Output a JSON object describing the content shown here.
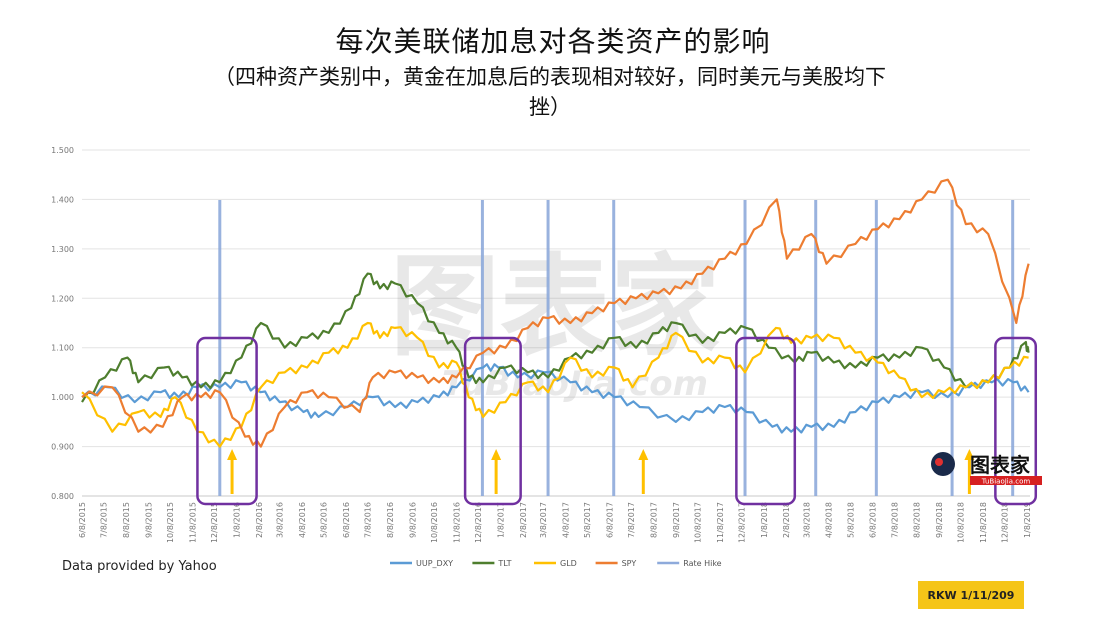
{
  "header": {
    "title": "每次美联储加息对各类资产的影响",
    "subtitle": "（四种资产类别中，黄金在加息后的表现相对较好，同时美元与美股均下挫）"
  },
  "footer": {
    "credit": "Data provided by Yahoo",
    "stamp": "RKW 1/11/209"
  },
  "watermark": {
    "brand_cn": "图表家",
    "brand_en": "TuBiaoJia.com"
  },
  "chart_data": {
    "type": "line",
    "title": "",
    "ylim": [
      0.8,
      1.5
    ],
    "yticks": [
      "0.800",
      "0.900",
      "1.000",
      "1.100",
      "1.200",
      "1.300",
      "1.400",
      "1.500"
    ],
    "grid": true,
    "xtick_labels": [
      "6/8/2015",
      "7/8/2015",
      "8/8/2015",
      "9/8/2015",
      "10/8/2015",
      "11/8/2015",
      "12/8/2015",
      "1/8/2016",
      "2/8/2016",
      "3/8/2016",
      "4/8/2016",
      "5/8/2016",
      "6/8/2016",
      "7/8/2016",
      "8/8/2016",
      "9/8/2016",
      "10/8/2016",
      "11/8/2016",
      "12/8/2016",
      "1/8/2017",
      "2/8/2017",
      "3/8/2017",
      "4/8/2017",
      "5/8/2017",
      "6/8/2017",
      "7/8/2017",
      "8/8/2017",
      "9/8/2017",
      "10/8/2017",
      "11/8/2017",
      "12/8/2017",
      "1/8/2018",
      "2/8/2018",
      "3/8/2018",
      "4/8/2018",
      "5/8/2018",
      "6/8/2018",
      "7/8/2018",
      "8/8/2018",
      "9/8/2018",
      "10/8/2018",
      "11/8/2018",
      "12/8/2018",
      "1/8/2019"
    ],
    "rate_hikes": [
      "2015-12-16",
      "2016-12-14",
      "2017-03-15",
      "2017-06-14",
      "2017-12-13",
      "2018-03-21",
      "2018-06-13",
      "2018-09-26",
      "2018-12-19"
    ],
    "highlight_windows": [
      [
        "2015-11-15",
        "2016-02-05"
      ],
      [
        "2016-11-20",
        "2017-02-05"
      ],
      [
        "2017-12-01",
        "2018-02-20"
      ],
      [
        "2018-11-25",
        "2019-01-20"
      ]
    ],
    "arrows": [
      "2016-01-02",
      "2017-01-02",
      "2017-07-25",
      "2018-10-20"
    ],
    "legend_position": "bottom",
    "colors": {
      "uup": "#5b9bd5",
      "tlt": "#4e7e2e",
      "gld": "#ffc000",
      "spy": "#ed7d31",
      "hike": "#8eaadb",
      "box": "#7030a0",
      "arrow": "#ffc000"
    },
    "series": [
      {
        "name": "UUP_DXY",
        "color": "#5b9bd5",
        "points": [
          [
            "2015-06-08",
            1.0
          ],
          [
            "2015-07-15",
            1.02
          ],
          [
            "2015-08-20",
            0.99
          ],
          [
            "2015-09-25",
            1.01
          ],
          [
            "2015-10-20",
            1.0
          ],
          [
            "2015-11-15",
            1.02
          ],
          [
            "2015-12-16",
            1.02
          ],
          [
            "2016-01-15",
            1.03
          ],
          [
            "2016-02-10",
            1.01
          ],
          [
            "2016-03-08",
            0.99
          ],
          [
            "2016-04-10",
            0.97
          ],
          [
            "2016-05-01",
            0.96
          ],
          [
            "2016-06-10",
            0.98
          ],
          [
            "2016-07-15",
            1.0
          ],
          [
            "2016-08-15",
            0.98
          ],
          [
            "2016-09-15",
            0.99
          ],
          [
            "2016-10-15",
            1.0
          ],
          [
            "2016-11-08",
            1.02
          ],
          [
            "2016-12-15",
            1.06
          ],
          [
            "2017-01-05",
            1.06
          ],
          [
            "2017-02-01",
            1.04
          ],
          [
            "2017-03-10",
            1.05
          ],
          [
            "2017-04-15",
            1.03
          ],
          [
            "2017-05-15",
            1.01
          ],
          [
            "2017-06-15",
            1.0
          ],
          [
            "2017-07-20",
            0.98
          ],
          [
            "2017-09-08",
            0.95
          ],
          [
            "2017-10-15",
            0.97
          ],
          [
            "2017-11-15",
            0.98
          ],
          [
            "2017-12-15",
            0.97
          ],
          [
            "2018-01-20",
            0.94
          ],
          [
            "2018-02-15",
            0.93
          ],
          [
            "2018-03-15",
            0.94
          ],
          [
            "2018-04-15",
            0.94
          ],
          [
            "2018-05-15",
            0.97
          ],
          [
            "2018-06-15",
            0.99
          ],
          [
            "2018-07-15",
            1.0
          ],
          [
            "2018-08-15",
            1.01
          ],
          [
            "2018-09-20",
            1.0
          ],
          [
            "2018-10-20",
            1.02
          ],
          [
            "2018-11-20",
            1.03
          ],
          [
            "2018-12-20",
            1.03
          ],
          [
            "2019-01-10",
            1.01
          ]
        ]
      },
      {
        "name": "TLT",
        "color": "#4e7e2e",
        "points": [
          [
            "2015-06-08",
            0.99
          ],
          [
            "2015-07-10",
            1.04
          ],
          [
            "2015-08-10",
            1.08
          ],
          [
            "2015-08-25",
            1.03
          ],
          [
            "2015-09-30",
            1.06
          ],
          [
            "2015-10-25",
            1.04
          ],
          [
            "2015-11-20",
            1.02
          ],
          [
            "2015-12-16",
            1.03
          ],
          [
            "2016-01-15",
            1.08
          ],
          [
            "2016-02-11",
            1.15
          ],
          [
            "2016-03-15",
            1.1
          ],
          [
            "2016-04-15",
            1.12
          ],
          [
            "2016-05-15",
            1.13
          ],
          [
            "2016-06-15",
            1.18
          ],
          [
            "2016-07-08",
            1.25
          ],
          [
            "2016-07-25",
            1.22
          ],
          [
            "2016-08-15",
            1.23
          ],
          [
            "2016-09-15",
            1.19
          ],
          [
            "2016-10-15",
            1.13
          ],
          [
            "2016-11-08",
            1.1
          ],
          [
            "2016-11-25",
            1.04
          ],
          [
            "2016-12-15",
            1.03
          ],
          [
            "2017-01-15",
            1.06
          ],
          [
            "2017-02-15",
            1.05
          ],
          [
            "2017-03-15",
            1.04
          ],
          [
            "2017-04-15",
            1.08
          ],
          [
            "2017-05-15",
            1.09
          ],
          [
            "2017-06-15",
            1.12
          ],
          [
            "2017-07-15",
            1.1
          ],
          [
            "2017-08-15",
            1.13
          ],
          [
            "2017-09-08",
            1.15
          ],
          [
            "2017-10-15",
            1.11
          ],
          [
            "2017-11-15",
            1.13
          ],
          [
            "2017-12-15",
            1.14
          ],
          [
            "2018-01-15",
            1.1
          ],
          [
            "2018-02-20",
            1.07
          ],
          [
            "2018-03-15",
            1.09
          ],
          [
            "2018-04-15",
            1.07
          ],
          [
            "2018-05-15",
            1.06
          ],
          [
            "2018-06-15",
            1.08
          ],
          [
            "2018-07-15",
            1.08
          ],
          [
            "2018-08-15",
            1.1
          ],
          [
            "2018-09-15",
            1.06
          ],
          [
            "2018-10-15",
            1.02
          ],
          [
            "2018-11-15",
            1.03
          ],
          [
            "2018-12-15",
            1.06
          ],
          [
            "2019-01-05",
            1.11
          ],
          [
            "2019-01-10",
            1.09
          ]
        ]
      },
      {
        "name": "GLD",
        "color": "#ffc000",
        "points": [
          [
            "2015-06-08",
            1.01
          ],
          [
            "2015-07-20",
            0.93
          ],
          [
            "2015-08-25",
            0.97
          ],
          [
            "2015-09-25",
            0.96
          ],
          [
            "2015-10-15",
            1.0
          ],
          [
            "2015-11-15",
            0.93
          ],
          [
            "2015-12-16",
            0.9
          ],
          [
            "2016-01-15",
            0.94
          ],
          [
            "2016-02-11",
            1.02
          ],
          [
            "2016-03-15",
            1.05
          ],
          [
            "2016-04-15",
            1.06
          ],
          [
            "2016-05-15",
            1.09
          ],
          [
            "2016-06-10",
            1.1
          ],
          [
            "2016-07-08",
            1.15
          ],
          [
            "2016-07-25",
            1.12
          ],
          [
            "2016-08-15",
            1.14
          ],
          [
            "2016-09-15",
            1.12
          ],
          [
            "2016-10-15",
            1.06
          ],
          [
            "2016-11-08",
            1.07
          ],
          [
            "2016-11-25",
            1.0
          ],
          [
            "2016-12-15",
            0.96
          ],
          [
            "2017-01-15",
            0.99
          ],
          [
            "2017-02-15",
            1.03
          ],
          [
            "2017-03-15",
            1.01
          ],
          [
            "2017-04-15",
            1.08
          ],
          [
            "2017-05-15",
            1.04
          ],
          [
            "2017-06-15",
            1.06
          ],
          [
            "2017-07-10",
            1.02
          ],
          [
            "2017-08-15",
            1.08
          ],
          [
            "2017-09-08",
            1.13
          ],
          [
            "2017-10-15",
            1.07
          ],
          [
            "2017-11-15",
            1.08
          ],
          [
            "2017-12-13",
            1.05
          ],
          [
            "2018-01-25",
            1.14
          ],
          [
            "2018-02-15",
            1.11
          ],
          [
            "2018-03-15",
            1.12
          ],
          [
            "2018-04-15",
            1.12
          ],
          [
            "2018-05-15",
            1.09
          ],
          [
            "2018-06-15",
            1.07
          ],
          [
            "2018-07-15",
            1.04
          ],
          [
            "2018-08-15",
            1.0
          ],
          [
            "2018-09-15",
            1.01
          ],
          [
            "2018-10-15",
            1.02
          ],
          [
            "2018-11-15",
            1.03
          ],
          [
            "2018-12-15",
            1.06
          ],
          [
            "2019-01-10",
            1.08
          ]
        ]
      },
      {
        "name": "SPY",
        "color": "#ed7d31",
        "points": [
          [
            "2015-06-08",
            1.0
          ],
          [
            "2015-07-20",
            1.02
          ],
          [
            "2015-08-25",
            0.93
          ],
          [
            "2015-09-28",
            0.94
          ],
          [
            "2015-10-25",
            1.0
          ],
          [
            "2015-11-20",
            1.0
          ],
          [
            "2015-12-16",
            1.01
          ],
          [
            "2016-01-20",
            0.92
          ],
          [
            "2016-02-11",
            0.9
          ],
          [
            "2016-03-15",
            0.98
          ],
          [
            "2016-04-15",
            1.01
          ],
          [
            "2016-05-15",
            1.0
          ],
          [
            "2016-06-27",
            0.97
          ],
          [
            "2016-07-15",
            1.04
          ],
          [
            "2016-08-15",
            1.05
          ],
          [
            "2016-09-15",
            1.04
          ],
          [
            "2016-10-15",
            1.03
          ],
          [
            "2016-11-08",
            1.04
          ],
          [
            "2016-12-15",
            1.09
          ],
          [
            "2017-01-15",
            1.1
          ],
          [
            "2017-02-15",
            1.14
          ],
          [
            "2017-03-15",
            1.16
          ],
          [
            "2017-04-15",
            1.15
          ],
          [
            "2017-05-15",
            1.17
          ],
          [
            "2017-06-15",
            1.19
          ],
          [
            "2017-07-15",
            1.2
          ],
          [
            "2017-08-15",
            1.21
          ],
          [
            "2017-09-15",
            1.22
          ],
          [
            "2017-10-15",
            1.25
          ],
          [
            "2017-11-15",
            1.28
          ],
          [
            "2017-12-15",
            1.31
          ],
          [
            "2018-01-26",
            1.4
          ],
          [
            "2018-02-09",
            1.28
          ],
          [
            "2018-03-15",
            1.33
          ],
          [
            "2018-04-05",
            1.27
          ],
          [
            "2018-05-15",
            1.31
          ],
          [
            "2018-06-15",
            1.34
          ],
          [
            "2018-07-15",
            1.36
          ],
          [
            "2018-08-15",
            1.4
          ],
          [
            "2018-09-20",
            1.44
          ],
          [
            "2018-10-15",
            1.35
          ],
          [
            "2018-11-15",
            1.33
          ],
          [
            "2018-12-24",
            1.15
          ],
          [
            "2019-01-10",
            1.27
          ]
        ]
      }
    ]
  }
}
